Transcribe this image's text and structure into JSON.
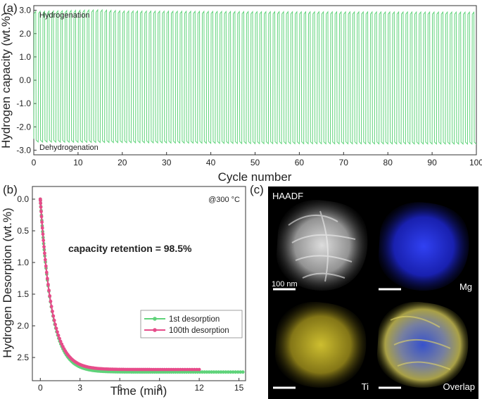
{
  "colors": {
    "green": "#5fd37a",
    "pink": "#e64c8a",
    "mg_blue": "#2233dd",
    "ti_yellow": "#c8b628",
    "frame": "#333333"
  },
  "panels": {
    "a": "(a)",
    "b": "(b)",
    "c": "(c)"
  },
  "chart_data": [
    {
      "id": "a",
      "type": "line",
      "title": "",
      "xlabel": "Cycle number",
      "ylabel": "Hydrogen capacity (wt.%)",
      "xlim": [
        0,
        100
      ],
      "ylim": [
        -3.2,
        3.2
      ],
      "xticks": [
        0,
        10,
        20,
        30,
        40,
        50,
        60,
        70,
        80,
        90,
        100
      ],
      "yticks": [
        3.0,
        2.0,
        1.0,
        0.0,
        -1.0,
        -2.0,
        -3.0
      ],
      "xtick_labels": [
        "0",
        "10",
        "20",
        "30",
        "40",
        "50",
        "60",
        "70",
        "80",
        "90",
        "100"
      ],
      "ytick_labels": [
        "3.0",
        "2.0",
        "1.0",
        "0.0",
        "-1.0",
        "-2.0",
        "-3.0"
      ],
      "annotations": {
        "top": "Hydrogenation",
        "bottom": "Dehydrogenation"
      },
      "series": [
        {
          "name": "capacity",
          "cycles": 100,
          "hydrogenation_max_by_cycle": [
            [
              0,
              2.95
            ],
            [
              15,
              3.02
            ],
            [
              20,
              2.97
            ],
            [
              50,
              2.94
            ],
            [
              100,
              2.92
            ]
          ],
          "dehydrogenation_min_by_cycle": [
            [
              0,
              -2.65
            ],
            [
              50,
              -2.72
            ],
            [
              100,
              -2.74
            ]
          ]
        }
      ]
    },
    {
      "id": "b",
      "type": "line",
      "title": "",
      "xlabel": "Time (min)",
      "ylabel": "Hydrogen Desorption (wt.%)",
      "xlim": [
        -0.6,
        15.5
      ],
      "ylim": [
        0.0,
        2.8
      ],
      "y_inverted": true,
      "xticks": [
        0,
        3,
        6,
        9,
        12,
        15
      ],
      "yticks": [
        0.0,
        0.5,
        1.0,
        1.5,
        2.0,
        2.5
      ],
      "xtick_labels": [
        "0",
        "3",
        "6",
        "9",
        "12",
        "15"
      ],
      "ytick_labels": [
        "0.0",
        "0.5",
        "1.0",
        "1.5",
        "2.0",
        "2.5"
      ],
      "annotations": {
        "condition": "@300 °C",
        "headline": "capacity retention = 98.5%"
      },
      "legend_position": "bottom-right",
      "series": [
        {
          "name": "1st desorption",
          "color": "#5fd37a",
          "plateau": 2.73,
          "t_end": 15.3
        },
        {
          "name": "100th desorption",
          "color": "#e64c8a",
          "plateau": 2.69,
          "t_end": 12.0
        }
      ]
    }
  ],
  "micrographs": {
    "haadf_label": "HAADF",
    "scale_label": "100 nm",
    "mg_label": "Mg",
    "ti_label": "Ti",
    "overlap_label": "Overlap"
  }
}
